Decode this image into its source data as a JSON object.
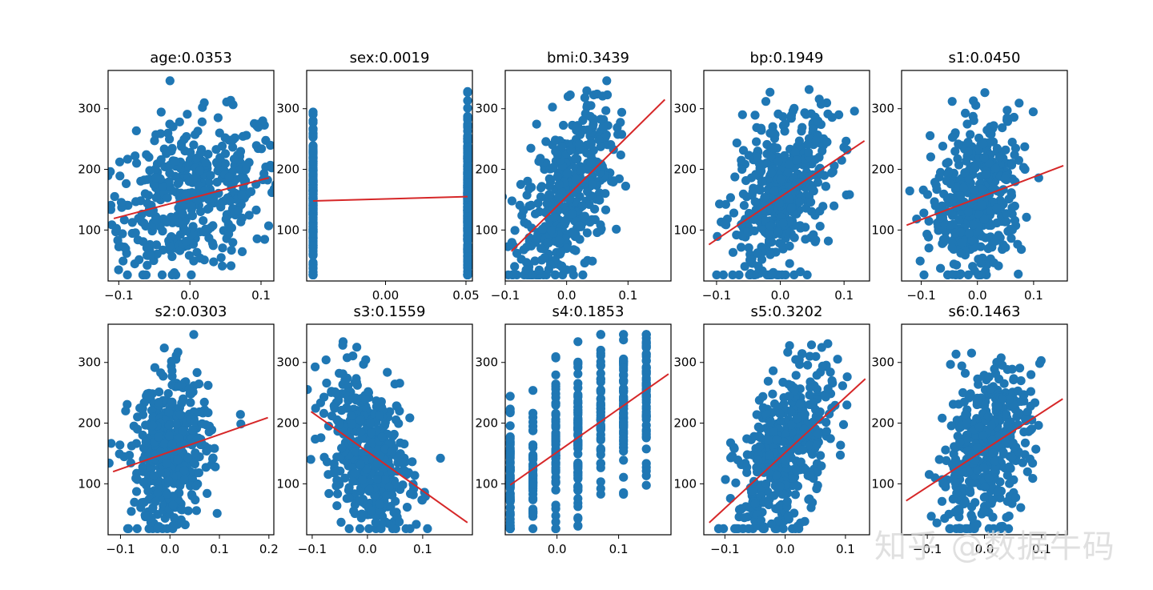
{
  "chart_data": [
    {
      "type": "scatter",
      "title": "age:0.0353",
      "xlim": [
        -0.115,
        0.118
      ],
      "ylim": [
        16,
        363
      ],
      "xticks": [
        -0.1,
        0.0,
        0.1
      ],
      "xtick_labels": [
        "−0.1",
        "0.0",
        "0.1"
      ],
      "yticks": [
        100,
        200,
        300
      ],
      "ytick_labels": [
        "100",
        "200",
        "300"
      ],
      "fit_line": {
        "x": [
          -0.107,
          0.111
        ],
        "y": [
          119,
          186
        ]
      },
      "x_spread": 0.08,
      "slope_hint": 0.35
    },
    {
      "type": "scatter",
      "title": "sex:0.0019",
      "xlim": [
        -0.049,
        0.054
      ],
      "ylim": [
        16,
        363
      ],
      "xticks": [
        0.0,
        0.05
      ],
      "xtick_labels": [
        "0.00",
        "0.05"
      ],
      "yticks": [
        100,
        200,
        300
      ],
      "ytick_labels": [
        "100",
        "200",
        "300"
      ],
      "fit_line": {
        "x": [
          -0.045,
          0.051
        ],
        "y": [
          148,
          155
        ]
      },
      "categorical_x": [
        -0.045,
        0.051
      ]
    },
    {
      "type": "scatter",
      "title": "bmi:0.3439",
      "xlim": [
        -0.1,
        0.17
      ],
      "ylim": [
        16,
        363
      ],
      "xticks": [
        -0.1,
        0.0,
        0.1
      ],
      "xtick_labels": [
        "−0.1",
        "0.0",
        "0.1"
      ],
      "yticks": [
        100,
        200,
        300
      ],
      "ytick_labels": [
        "100",
        "200",
        "300"
      ],
      "fit_line": {
        "x": [
          -0.09,
          0.16
        ],
        "y": [
          65,
          315
        ]
      },
      "x_spread": 0.05,
      "slope_hint": 0.7
    },
    {
      "type": "scatter",
      "title": "bp:0.1949",
      "xlim": [
        -0.12,
        0.14
      ],
      "ylim": [
        16,
        363
      ],
      "xticks": [
        -0.1,
        0.0,
        0.1
      ],
      "xtick_labels": [
        "−0.1",
        "0.0",
        "0.1"
      ],
      "yticks": [
        100,
        200,
        300
      ],
      "ytick_labels": [
        "100",
        "200",
        "300"
      ],
      "fit_line": {
        "x": [
          -0.112,
          0.132
        ],
        "y": [
          76,
          247
        ]
      },
      "x_spread": 0.05,
      "slope_hint": 0.55
    },
    {
      "type": "scatter",
      "title": "s1:0.0450",
      "xlim": [
        -0.135,
        0.16
      ],
      "ylim": [
        16,
        363
      ],
      "xticks": [
        -0.1,
        0.0,
        0.1
      ],
      "xtick_labels": [
        "−0.1",
        "0.0",
        "0.1"
      ],
      "yticks": [
        100,
        200,
        300
      ],
      "ytick_labels": [
        "100",
        "200",
        "300"
      ],
      "fit_line": {
        "x": [
          -0.126,
          0.153
        ],
        "y": [
          108,
          206
        ]
      },
      "x_spread": 0.05,
      "slope_hint": 0.25
    },
    {
      "type": "scatter",
      "title": "s2:0.0303",
      "xlim": [
        -0.125,
        0.21
      ],
      "ylim": [
        16,
        363
      ],
      "xticks": [
        -0.1,
        0.0,
        0.1,
        0.2
      ],
      "xtick_labels": [
        "−0.1",
        "0.0",
        "0.1",
        "0.2"
      ],
      "yticks": [
        100,
        200,
        300
      ],
      "ytick_labels": [
        "100",
        "200",
        "300"
      ],
      "fit_line": {
        "x": [
          -0.115,
          0.198
        ],
        "y": [
          120,
          209
        ]
      },
      "x_spread": 0.05,
      "slope_hint": 0.25
    },
    {
      "type": "scatter",
      "title": "s3:0.1559",
      "xlim": [
        -0.11,
        0.19
      ],
      "ylim": [
        16,
        363
      ],
      "xticks": [
        -0.1,
        0.0,
        0.1
      ],
      "xtick_labels": [
        "−0.1",
        "0.0",
        "0.1"
      ],
      "yticks": [
        100,
        200,
        300
      ],
      "ytick_labels": [
        "100",
        "200",
        "300"
      ],
      "fit_line": {
        "x": [
          -0.102,
          0.181
        ],
        "y": [
          219,
          36
        ]
      },
      "x_spread": 0.05,
      "slope_hint": -0.55
    },
    {
      "type": "scatter",
      "title": "s4:0.1853",
      "xlim": [
        -0.084,
        0.185
      ],
      "ylim": [
        16,
        363
      ],
      "xticks": [
        0.0,
        0.1
      ],
      "xtick_labels": [
        "0.0",
        "0.1"
      ],
      "yticks": [
        100,
        200,
        300
      ],
      "ytick_labels": [
        "100",
        "200",
        "300"
      ],
      "fit_line": {
        "x": [
          -0.076,
          0.181
        ],
        "y": [
          98,
          281
        ]
      },
      "categorical_x": [
        -0.076,
        -0.039,
        -0.002,
        0.034,
        0.071,
        0.108,
        0.145
      ]
    },
    {
      "type": "scatter",
      "title": "s5:0.3202",
      "xlim": [
        -0.135,
        0.14
      ],
      "ylim": [
        16,
        363
      ],
      "xticks": [
        -0.1,
        0.0,
        0.1
      ],
      "xtick_labels": [
        "−0.1",
        "0.0",
        "0.1"
      ],
      "yticks": [
        100,
        200,
        300
      ],
      "ytick_labels": [
        "100",
        "200",
        "300"
      ],
      "fit_line": {
        "x": [
          -0.126,
          0.133
        ],
        "y": [
          36,
          273
        ]
      },
      "x_spread": 0.05,
      "slope_hint": 0.7
    },
    {
      "type": "scatter",
      "title": "s6:0.1463",
      "xlim": [
        -0.145,
        0.145
      ],
      "ylim": [
        16,
        363
      ],
      "xticks": [
        -0.1,
        0.0,
        0.1
      ],
      "xtick_labels": [
        "−0.1",
        "0.0",
        "0.1"
      ],
      "yticks": [
        100,
        200,
        300
      ],
      "ytick_labels": [
        "100",
        "200",
        "300"
      ],
      "fit_line": {
        "x": [
          -0.137,
          0.137
        ],
        "y": [
          72,
          240
        ]
      },
      "x_spread": 0.05,
      "slope_hint": 0.5
    }
  ],
  "style": {
    "point_color": "#1f77b4",
    "line_color": "#d62728",
    "n_points": 442
  },
  "watermark": {
    "text": "知乎 @数据牛码"
  }
}
